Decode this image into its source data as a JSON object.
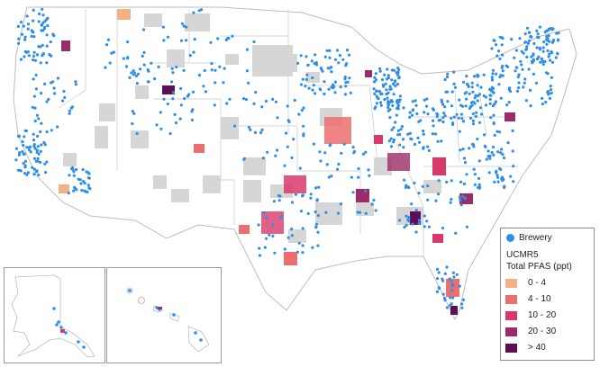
{
  "legend": {
    "brewery_label": "Brewery",
    "brewery_color": "#2f8fe8",
    "title_line1": "UCMR5",
    "title_line2": "Total PFAS (ppt)",
    "bins": [
      {
        "label": "0 - 4",
        "color": "#f4b183"
      },
      {
        "label": "4 - 10",
        "color": "#eb6f6f"
      },
      {
        "label": "10 - 20",
        "color": "#d9386a"
      },
      {
        "label": "20 - 30",
        "color": "#9b2c69"
      },
      {
        "label": "> 40",
        "color": "#5d0f55"
      }
    ]
  },
  "map": {
    "no_data_color": "#d6d6d6",
    "land_color": "#ffffff",
    "border_color": "#bdbdbd"
  }
}
